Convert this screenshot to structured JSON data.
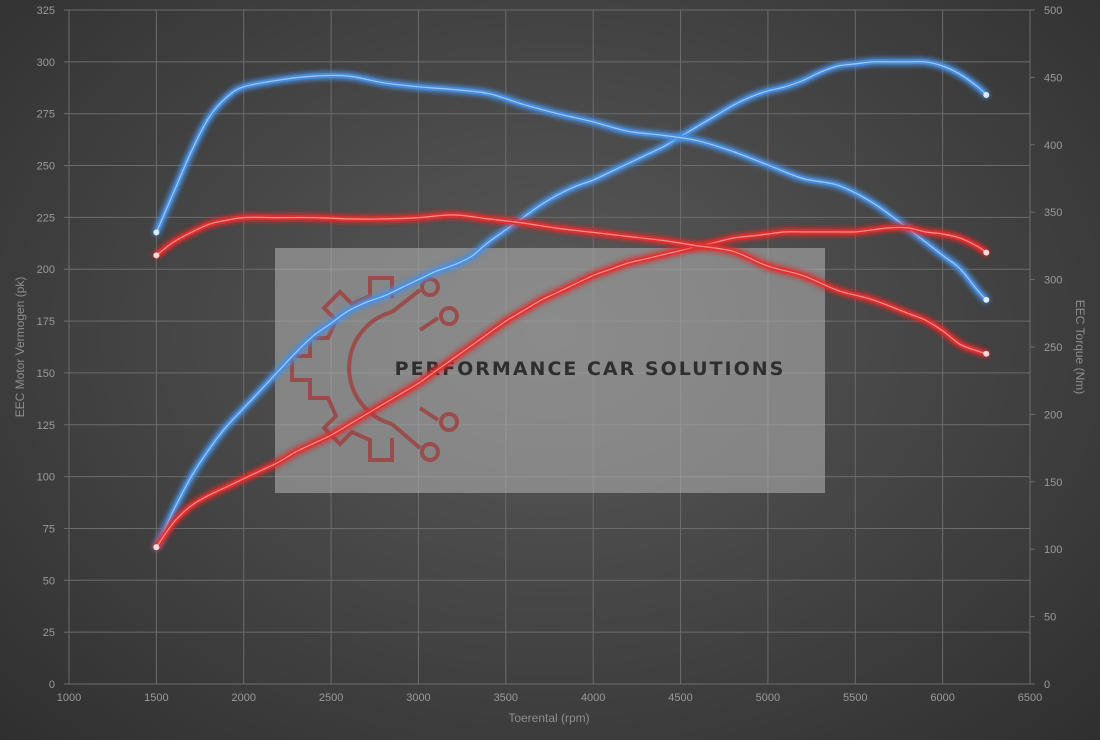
{
  "chart_data": {
    "type": "line",
    "xlabel": "Toerental (rpm)",
    "ylabel_left": "EEC Motor Vermogen (pk)",
    "ylabel_right": "EEC Torque (Nm)",
    "xlim": [
      1000,
      6500
    ],
    "ylim_left": [
      0,
      325
    ],
    "ylim_right": [
      0,
      500
    ],
    "x_ticks": [
      1000,
      1500,
      2000,
      2500,
      3000,
      3500,
      4000,
      4500,
      5000,
      5500,
      6000,
      6500
    ],
    "y_ticks_left": [
      0,
      25,
      50,
      75,
      100,
      125,
      150,
      175,
      200,
      225,
      250,
      275,
      300,
      325
    ],
    "y_ticks_right": [
      0,
      50,
      100,
      150,
      200,
      250,
      300,
      350,
      400,
      450,
      500
    ],
    "grid": true,
    "series": [
      {
        "axis": "left",
        "color": "#4a8fe0",
        "points": [
          [
            1500,
            66
          ],
          [
            1600,
            84
          ],
          [
            1700,
            100
          ],
          [
            1800,
            113
          ],
          [
            1900,
            124
          ],
          [
            2000,
            133
          ],
          [
            2100,
            142
          ],
          [
            2200,
            151
          ],
          [
            2300,
            160
          ],
          [
            2400,
            168
          ],
          [
            2500,
            174
          ],
          [
            2600,
            180
          ],
          [
            2700,
            184
          ],
          [
            2800,
            187
          ],
          [
            2900,
            191
          ],
          [
            3000,
            195
          ],
          [
            3100,
            199
          ],
          [
            3200,
            202
          ],
          [
            3300,
            206
          ],
          [
            3400,
            213
          ],
          [
            3500,
            219
          ],
          [
            3600,
            225
          ],
          [
            3700,
            231
          ],
          [
            3800,
            236
          ],
          [
            3900,
            240
          ],
          [
            4000,
            243
          ],
          [
            4100,
            247
          ],
          [
            4200,
            251
          ],
          [
            4300,
            255
          ],
          [
            4400,
            259
          ],
          [
            4500,
            264
          ],
          [
            4600,
            269
          ],
          [
            4700,
            274
          ],
          [
            4800,
            279
          ],
          [
            4900,
            283
          ],
          [
            5000,
            286
          ],
          [
            5100,
            288
          ],
          [
            5200,
            291
          ],
          [
            5300,
            295
          ],
          [
            5400,
            298
          ],
          [
            5500,
            299
          ],
          [
            5600,
            300
          ],
          [
            5700,
            300
          ],
          [
            5800,
            300
          ],
          [
            5900,
            300
          ],
          [
            6000,
            298
          ],
          [
            6100,
            294
          ],
          [
            6200,
            288
          ],
          [
            6250,
            284
          ]
        ]
      },
      {
        "axis": "right",
        "color": "#4a8fe0",
        "points": [
          [
            1500,
            335
          ],
          [
            1600,
            365
          ],
          [
            1700,
            395
          ],
          [
            1800,
            420
          ],
          [
            1900,
            435
          ],
          [
            2000,
            443
          ],
          [
            2200,
            448
          ],
          [
            2400,
            451
          ],
          [
            2600,
            451
          ],
          [
            2800,
            446
          ],
          [
            3000,
            443
          ],
          [
            3200,
            441
          ],
          [
            3400,
            438
          ],
          [
            3600,
            430
          ],
          [
            3800,
            423
          ],
          [
            4000,
            417
          ],
          [
            4200,
            410
          ],
          [
            4400,
            407
          ],
          [
            4600,
            403
          ],
          [
            4800,
            395
          ],
          [
            5000,
            385
          ],
          [
            5200,
            375
          ],
          [
            5400,
            370
          ],
          [
            5600,
            357
          ],
          [
            5800,
            338
          ],
          [
            6000,
            318
          ],
          [
            6100,
            308
          ],
          [
            6200,
            292
          ],
          [
            6250,
            285
          ]
        ]
      },
      {
        "axis": "left",
        "color": "#e03030",
        "points": [
          [
            1500,
            66
          ],
          [
            1600,
            78
          ],
          [
            1700,
            86
          ],
          [
            1800,
            91
          ],
          [
            1900,
            95
          ],
          [
            2000,
            99
          ],
          [
            2100,
            103
          ],
          [
            2200,
            107
          ],
          [
            2300,
            112
          ],
          [
            2400,
            116
          ],
          [
            2500,
            120
          ],
          [
            2600,
            125
          ],
          [
            2700,
            130
          ],
          [
            2800,
            135
          ],
          [
            2900,
            140
          ],
          [
            3000,
            145
          ],
          [
            3100,
            151
          ],
          [
            3200,
            157
          ],
          [
            3300,
            163
          ],
          [
            3400,
            169
          ],
          [
            3500,
            175
          ],
          [
            3600,
            180
          ],
          [
            3700,
            185
          ],
          [
            3800,
            189
          ],
          [
            3900,
            193
          ],
          [
            4000,
            197
          ],
          [
            4100,
            200
          ],
          [
            4200,
            203
          ],
          [
            4300,
            205
          ],
          [
            4400,
            207
          ],
          [
            4500,
            209
          ],
          [
            4600,
            211
          ],
          [
            4700,
            213
          ],
          [
            4800,
            215
          ],
          [
            4900,
            216
          ],
          [
            5000,
            217
          ],
          [
            5100,
            218
          ],
          [
            5200,
            218
          ],
          [
            5300,
            218
          ],
          [
            5400,
            218
          ],
          [
            5500,
            218
          ],
          [
            5600,
            219
          ],
          [
            5700,
            220
          ],
          [
            5800,
            220
          ],
          [
            5900,
            218
          ],
          [
            6000,
            217
          ],
          [
            6100,
            215
          ],
          [
            6200,
            211
          ],
          [
            6250,
            208
          ]
        ]
      },
      {
        "axis": "right",
        "color": "#e03030",
        "points": [
          [
            1500,
            318
          ],
          [
            1600,
            328
          ],
          [
            1700,
            335
          ],
          [
            1800,
            341
          ],
          [
            1900,
            344
          ],
          [
            2000,
            346
          ],
          [
            2200,
            346
          ],
          [
            2400,
            346
          ],
          [
            2600,
            345
          ],
          [
            2800,
            345
          ],
          [
            3000,
            346
          ],
          [
            3200,
            348
          ],
          [
            3400,
            345
          ],
          [
            3600,
            342
          ],
          [
            3800,
            338
          ],
          [
            4000,
            335
          ],
          [
            4200,
            332
          ],
          [
            4400,
            329
          ],
          [
            4600,
            325
          ],
          [
            4800,
            321
          ],
          [
            5000,
            310
          ],
          [
            5200,
            303
          ],
          [
            5400,
            292
          ],
          [
            5600,
            285
          ],
          [
            5800,
            275
          ],
          [
            5900,
            270
          ],
          [
            6000,
            262
          ],
          [
            6100,
            252
          ],
          [
            6200,
            247
          ],
          [
            6250,
            245
          ]
        ]
      }
    ]
  },
  "watermark": {
    "text": "PERFORMANCE CAR SOLUTIONS",
    "logo": "gear-circuit-logo"
  }
}
